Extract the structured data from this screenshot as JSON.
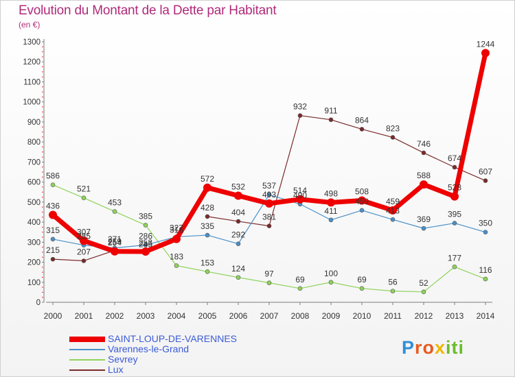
{
  "header": {
    "title": "Evolution du Montant de la Dette par Habitant",
    "subtitle": "(en €)"
  },
  "logo": {
    "text": "Proxiti"
  },
  "chart_data": {
    "type": "line",
    "title": "Evolution du Montant de la Dette par Habitant",
    "subtitle": "(en €)",
    "xlabel": "",
    "ylabel": "",
    "x": [
      "2000",
      "2001",
      "2002",
      "2003",
      "2004",
      "2005",
      "2006",
      "2007",
      "2008",
      "2009",
      "2010",
      "2011",
      "2012",
      "2013",
      "2014"
    ],
    "ylim": [
      0,
      1300
    ],
    "yticks": [
      0,
      100,
      200,
      300,
      400,
      500,
      600,
      700,
      800,
      900,
      1000,
      1100,
      1200,
      1300
    ],
    "grid": false,
    "legend_position": "bottom-left",
    "series": [
      {
        "name": "SAINT-LOUP-DE-VARENNES",
        "color": "#ee0000",
        "values": [
          436,
          307,
          254,
          253,
          316,
          572,
          532,
          493,
          514,
          498,
          508,
          459,
          588,
          528,
          1244
        ],
        "labels": [
          "436",
          "307",
          "254",
          "253",
          "316",
          "572",
          "532",
          "493",
          "514",
          "498",
          "508",
          "459",
          "588",
          "528",
          "1244"
        ]
      },
      {
        "name": "Varennes-le-Grand",
        "color": "#4a90c8",
        "values": [
          315,
          285,
          271,
          286,
          327,
          335,
          292,
          537,
          490,
          411,
          459,
          413,
          369,
          395,
          350
        ],
        "labels": [
          "315",
          "285",
          "271",
          "286",
          "327",
          "335",
          "292",
          "537",
          "490",
          "411",
          "459",
          "413",
          "369",
          "395",
          "350"
        ]
      },
      {
        "name": "Sevrey",
        "color": "#8ed35a",
        "values": [
          586,
          521,
          453,
          385,
          183,
          153,
          124,
          97,
          69,
          100,
          69,
          56,
          52,
          177,
          116
        ],
        "labels": [
          "586",
          "521",
          "453",
          "385",
          "183",
          "153",
          "124",
          "97",
          "69",
          "100",
          "69",
          "56",
          "52",
          "177",
          "116"
        ]
      },
      {
        "name": "Lux",
        "color": "#7a2a2a",
        "values": [
          215,
          207,
          259,
          245,
          null,
          428,
          404,
          381,
          932,
          911,
          864,
          823,
          746,
          674,
          607
        ],
        "labels": [
          "215",
          "207",
          "259",
          "245",
          "",
          "428",
          "404",
          "381",
          "932",
          "911",
          "864",
          "823",
          "746",
          "674",
          "607"
        ]
      }
    ]
  }
}
